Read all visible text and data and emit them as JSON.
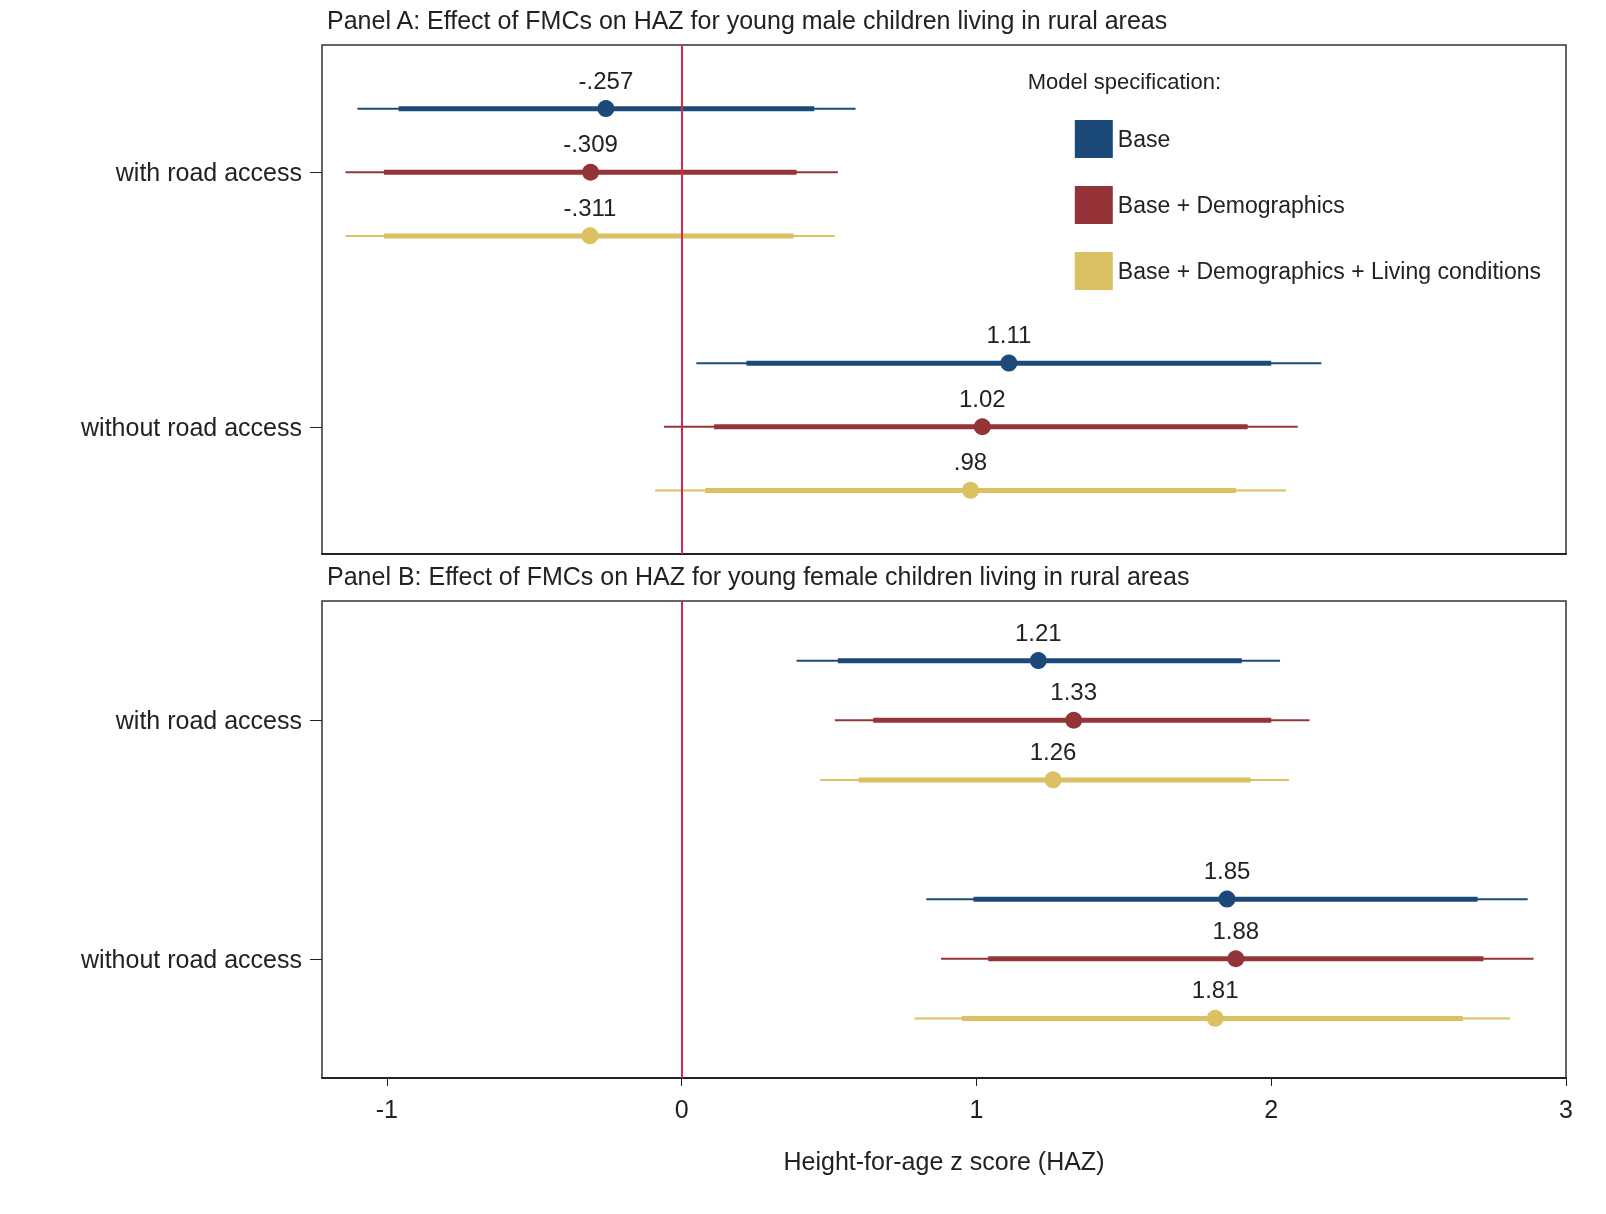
{
  "chart_data": [
    {
      "type": "scatter",
      "orientation": "horizontal",
      "title": "Panel A: Effect of FMCs on HAZ for young male children living in rural areas",
      "legend_title": "Model specification:",
      "categories": [
        "with road access",
        "without road access"
      ],
      "xlim": [
        -1.22,
        3
      ],
      "xticks": [
        -1,
        0,
        1,
        2,
        3
      ],
      "tick_labels": "y",
      "legend": "top right",
      "marker": "circle",
      "grid": false,
      "ref_lines": [
        {
          "axis": "x",
          "value": 0,
          "color": "#d6264a"
        }
      ],
      "series": [
        {
          "name": "Base",
          "color": "#1b4a7a",
          "values": [
            -0.257,
            1.11
          ],
          "value_labels": [
            "-.257",
            "1.11"
          ],
          "errors": [
            [
              -1.1,
              0.59
            ],
            [
              0.05,
              2.17
            ]
          ]
        },
        {
          "name": "Base + Demographics",
          "color": "#943438",
          "values": [
            -0.309,
            1.02
          ],
          "value_labels": [
            "-.309",
            "1.02"
          ],
          "errors": [
            [
              -1.14,
              0.53
            ],
            [
              -0.06,
              2.09
            ]
          ]
        },
        {
          "name": "Base + Demographics + Living conditions",
          "color": "#dbc162",
          "values": [
            -0.311,
            0.98
          ],
          "value_labels": [
            "-.311",
            ".98"
          ],
          "errors": [
            [
              -1.14,
              0.52
            ],
            [
              -0.09,
              2.05
            ]
          ]
        },
        {
          "type": "bar",
          "color": "#1b4a7a",
          "base": [
            -0.96,
            0.22
          ],
          "values": [
            1.41,
            1.78
          ]
        },
        {
          "type": "bar",
          "color": "#943438",
          "base": [
            -1.01,
            0.11
          ],
          "values": [
            1.4,
            1.81
          ]
        },
        {
          "type": "bar",
          "color": "#dbc162",
          "base": [
            -1.01,
            0.08
          ],
          "values": [
            1.39,
            1.8
          ]
        }
      ]
    },
    {
      "type": "scatter",
      "orientation": "horizontal",
      "title": "Panel B: Effect of FMCs on HAZ for young female children living in rural areas",
      "xlabel": "Height-for-age z score (HAZ)",
      "categories": [
        "with road access",
        "without road access"
      ],
      "xlim": [
        -1.22,
        3
      ],
      "xticks": [
        -1,
        0,
        1,
        2,
        3
      ],
      "marker": "circle",
      "grid": false,
      "ref_lines": [
        {
          "axis": "x",
          "value": 0,
          "color": "#d6264a"
        }
      ],
      "series": [
        {
          "color": "#1b4a7a",
          "values": [
            1.21,
            1.85
          ],
          "value_labels": [
            "1.21",
            "1.85"
          ],
          "errors": [
            [
              0.39,
              2.03
            ],
            [
              0.83,
              2.87
            ]
          ]
        },
        {
          "color": "#943438",
          "values": [
            1.33,
            1.88
          ],
          "value_labels": [
            "1.33",
            "1.88"
          ],
          "errors": [
            [
              0.52,
              2.13
            ],
            [
              0.88,
              2.89
            ]
          ]
        },
        {
          "color": "#dbc162",
          "values": [
            1.26,
            1.81
          ],
          "value_labels": [
            "1.26",
            "1.81"
          ],
          "errors": [
            [
              0.47,
              2.06
            ],
            [
              0.79,
              2.81
            ]
          ]
        },
        {
          "type": "bar",
          "color": "#1b4a7a",
          "base": [
            0.53,
            0.99
          ],
          "values": [
            1.37,
            1.71
          ]
        },
        {
          "type": "bar",
          "color": "#943438",
          "base": [
            0.65,
            1.04
          ],
          "values": [
            1.35,
            1.68
          ]
        },
        {
          "type": "bar",
          "color": "#dbc162",
          "base": [
            0.6,
            0.95
          ],
          "values": [
            1.33,
            1.7
          ]
        }
      ]
    }
  ]
}
